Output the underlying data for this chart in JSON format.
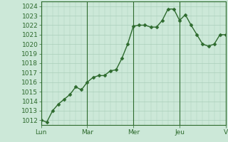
{
  "x_values": [
    0,
    1,
    2,
    3,
    4,
    5,
    6,
    7,
    8,
    9,
    10,
    11,
    12,
    13,
    14,
    15,
    16,
    17,
    18,
    19,
    20,
    21,
    22,
    23,
    24,
    25,
    26,
    27,
    28,
    29,
    30,
    31,
    32
  ],
  "y_values": [
    1012,
    1011.8,
    1013,
    1013.7,
    1014.2,
    1014.7,
    1015.5,
    1015.2,
    1016.0,
    1016.5,
    1016.7,
    1016.7,
    1017.2,
    1017.3,
    1018.5,
    1020.0,
    1021.9,
    1022.0,
    1022.0,
    1021.8,
    1021.8,
    1022.5,
    1023.7,
    1023.7,
    1022.5,
    1023.1,
    1022.0,
    1021.0,
    1020.0,
    1019.8,
    1020.0,
    1021.0,
    1021.0
  ],
  "day_ticks": [
    0,
    8,
    16,
    24,
    32
  ],
  "day_labels": [
    "Lun",
    "Mar",
    "Mer",
    "Jeu",
    "V"
  ],
  "ylim": [
    1011.5,
    1024.5
  ],
  "yticks": [
    1012,
    1013,
    1014,
    1015,
    1016,
    1017,
    1018,
    1019,
    1020,
    1021,
    1022,
    1023,
    1024
  ],
  "line_color": "#2d6a2d",
  "marker_color": "#2d6a2d",
  "bg_color": "#cce8d8",
  "grid_color": "#aacfba",
  "axis_color": "#2d6a2d",
  "tick_label_color": "#2d6a2d",
  "font_size_tick": 6.5,
  "line_width": 1.0,
  "marker_size": 2.5
}
